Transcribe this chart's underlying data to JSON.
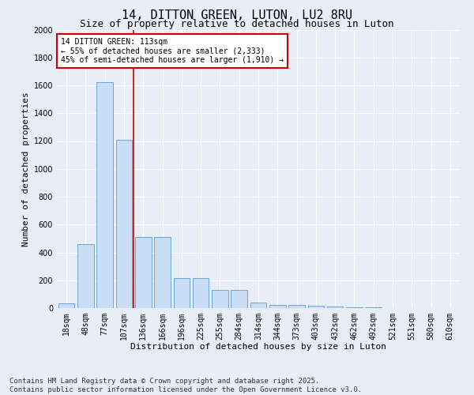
{
  "title": "14, DITTON GREEN, LUTON, LU2 8RU",
  "subtitle": "Size of property relative to detached houses in Luton",
  "xlabel": "Distribution of detached houses by size in Luton",
  "ylabel": "Number of detached properties",
  "categories": [
    "18sqm",
    "48sqm",
    "77sqm",
    "107sqm",
    "136sqm",
    "166sqm",
    "196sqm",
    "225sqm",
    "255sqm",
    "284sqm",
    "314sqm",
    "344sqm",
    "373sqm",
    "403sqm",
    "432sqm",
    "462sqm",
    "492sqm",
    "521sqm",
    "551sqm",
    "580sqm",
    "610sqm"
  ],
  "values": [
    35,
    460,
    1620,
    1210,
    510,
    510,
    215,
    215,
    130,
    130,
    40,
    25,
    20,
    15,
    10,
    5,
    3,
    2,
    1,
    1,
    0
  ],
  "bar_color": "#c9ddf5",
  "bar_edge_color": "#5b9bd5",
  "red_line_index": 3,
  "annotation_text": "14 DITTON GREEN: 113sqm\n← 55% of detached houses are smaller (2,333)\n45% of semi-detached houses are larger (1,910) →",
  "annotation_box_color": "#ffffff",
  "annotation_box_edge_color": "#cc0000",
  "red_line_color": "#cc0000",
  "ylim": [
    0,
    2000
  ],
  "yticks": [
    0,
    200,
    400,
    600,
    800,
    1000,
    1200,
    1400,
    1600,
    1800,
    2000
  ],
  "footnote": "Contains HM Land Registry data © Crown copyright and database right 2025.\nContains public sector information licensed under the Open Government Licence v3.0.",
  "background_color": "#e8eef8",
  "plot_background": "#e8eef8",
  "grid_color": "#ffffff",
  "title_fontsize": 11,
  "subtitle_fontsize": 9,
  "axis_label_fontsize": 8,
  "tick_fontsize": 7,
  "footnote_fontsize": 6.5,
  "annotation_fontsize": 7
}
